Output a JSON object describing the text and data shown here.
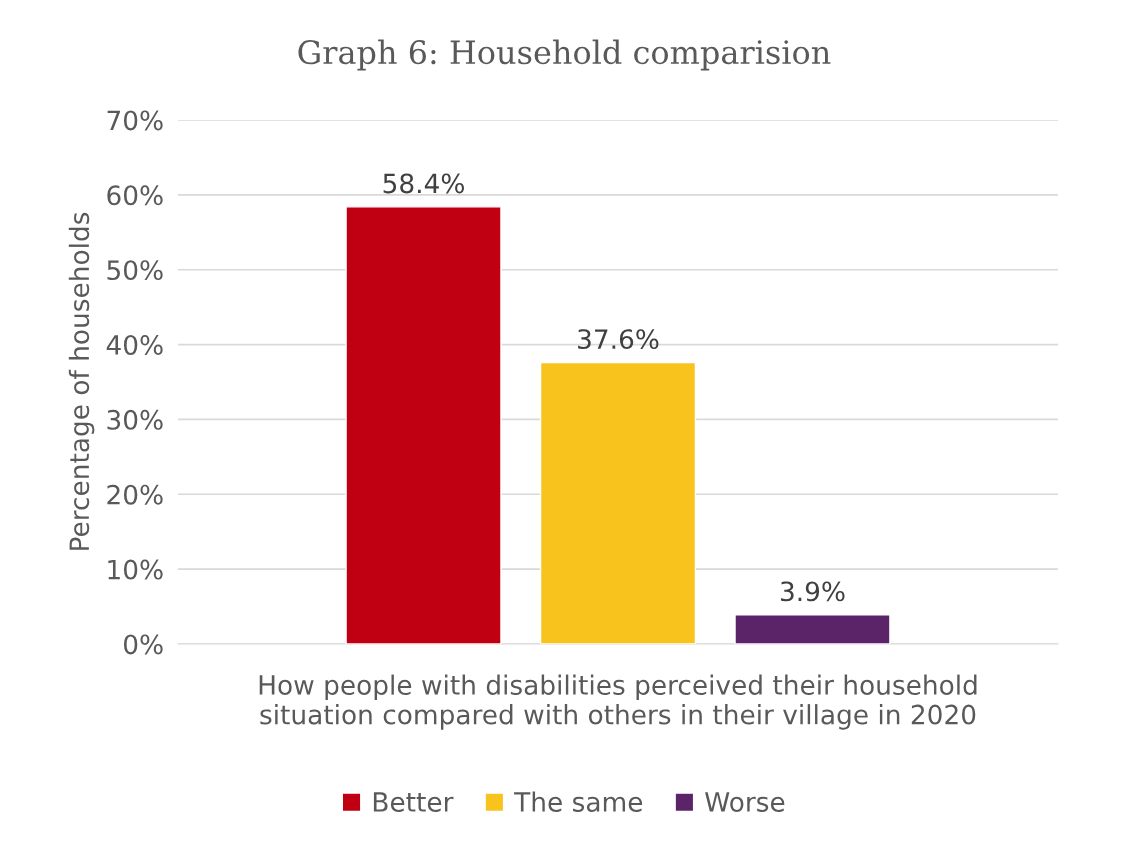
{
  "chart_data": {
    "type": "bar",
    "title": "Graph 6: Household comparision",
    "ylabel": "Percentage of households",
    "categories": [
      "How people with disabilities perceived their household\nsituation compared with others in their village in 2020"
    ],
    "series": [
      {
        "name": "Better",
        "color": "#c00012",
        "values": [
          58.4
        ],
        "value_labels": [
          "58.4%"
        ]
      },
      {
        "name": "The same",
        "color": "#f9c31e",
        "values": [
          37.6
        ],
        "value_labels": [
          "37.6%"
        ]
      },
      {
        "name": "Worse",
        "color": "#5b2469",
        "values": [
          3.9
        ],
        "value_labels": [
          "3.9%"
        ]
      }
    ],
    "ylim": [
      0,
      70
    ],
    "yticks": [
      {
        "value": 0,
        "label": "0%"
      },
      {
        "value": 10,
        "label": "10%"
      },
      {
        "value": 20,
        "label": "20%"
      },
      {
        "value": 30,
        "label": "30%"
      },
      {
        "value": 40,
        "label": "40%"
      },
      {
        "value": 50,
        "label": "50%"
      },
      {
        "value": 60,
        "label": "60%"
      },
      {
        "value": 70,
        "label": "70%"
      }
    ],
    "grid": "y",
    "legend": "bottom"
  }
}
